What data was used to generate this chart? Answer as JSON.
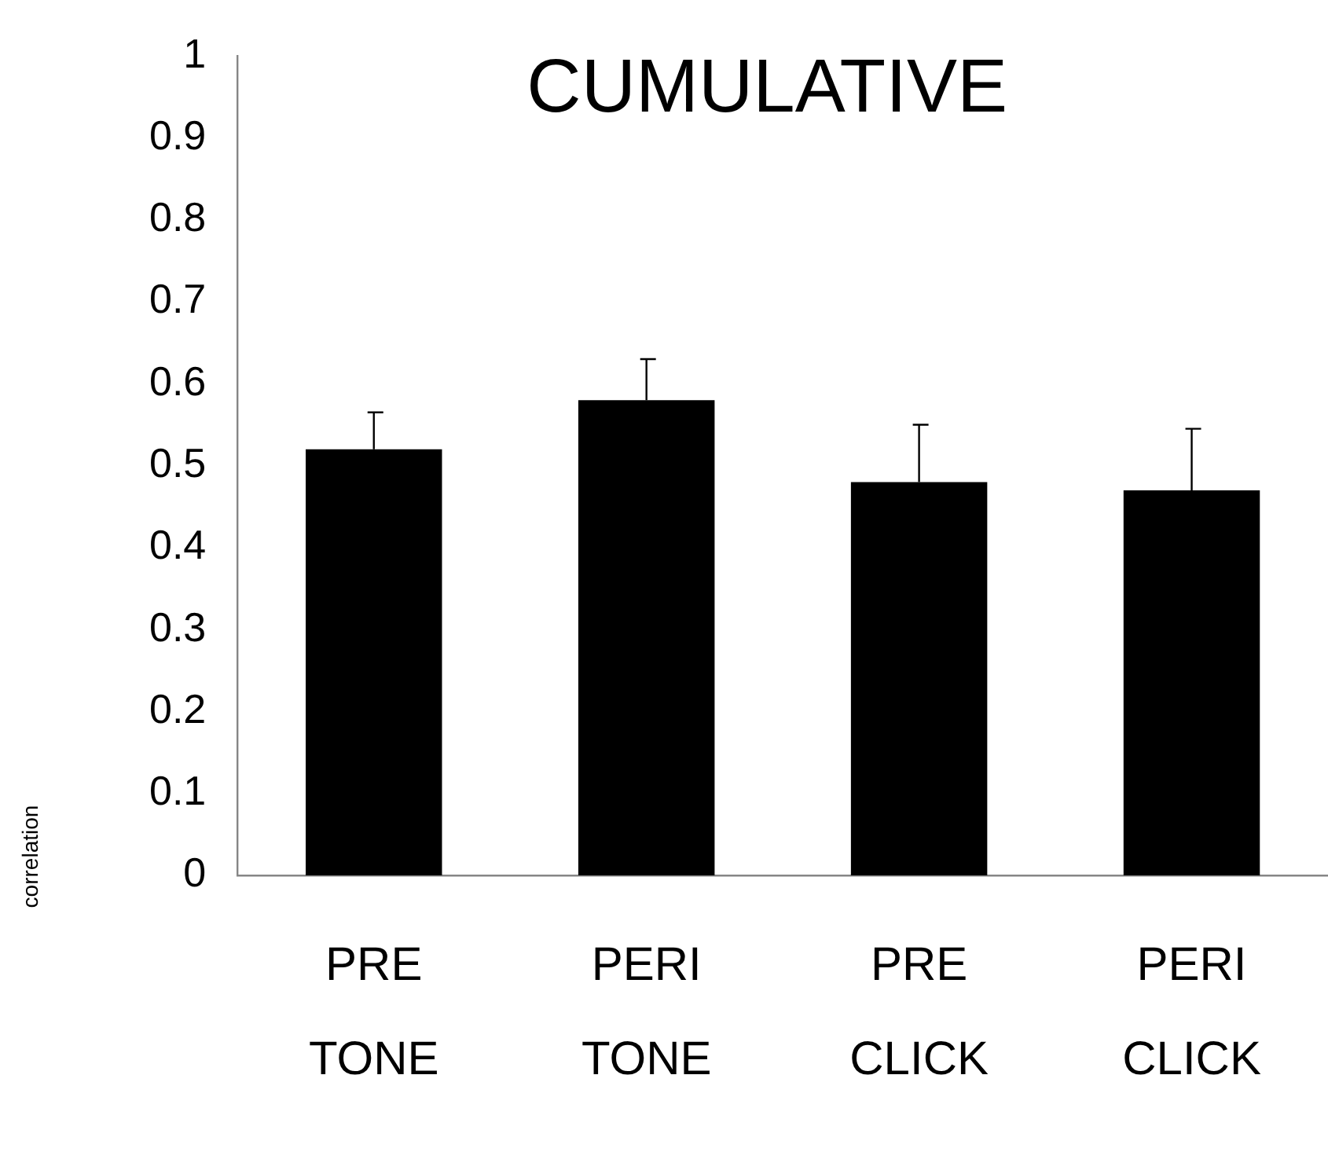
{
  "chart_data": {
    "type": "bar",
    "title": "CUMULATIVE",
    "ylabel": "correlation",
    "categories": [
      "PRE TONE",
      "PERI TONE",
      "PRE CLICK",
      "PERI CLICK"
    ],
    "values": [
      0.52,
      0.58,
      0.48,
      0.47
    ],
    "errors": [
      [
        0.52,
        0.565
      ],
      [
        0.58,
        0.63
      ],
      [
        0.48,
        0.55
      ],
      [
        0.47,
        0.545
      ]
    ],
    "color": "#000000",
    "ylim": [
      0,
      1
    ],
    "yticks": [
      0,
      0.1,
      0.2,
      0.3,
      0.4,
      0.5,
      0.6,
      0.7,
      0.8,
      0.9,
      1
    ],
    "grid": false,
    "legend": false
  }
}
